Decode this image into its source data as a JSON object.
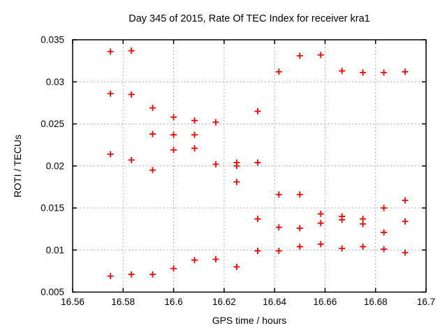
{
  "page": {
    "background": "#ffffff"
  },
  "chart_data": {
    "type": "scatter",
    "title": "Day 345 of 2015, Rate Of TEC Index for receiver kra1",
    "xlabel": "GPS time / hours",
    "ylabel": "ROTI / TECUs",
    "xlim": [
      16.56,
      16.7
    ],
    "ylim": [
      0.005,
      0.035
    ],
    "xticks": [
      {
        "value": 16.56,
        "label": "16.56"
      },
      {
        "value": 16.58,
        "label": "16.58"
      },
      {
        "value": 16.6,
        "label": "16.6"
      },
      {
        "value": 16.62,
        "label": "16.62"
      },
      {
        "value": 16.64,
        "label": "16.64"
      },
      {
        "value": 16.66,
        "label": "16.66"
      },
      {
        "value": 16.68,
        "label": "16.68"
      },
      {
        "value": 16.7,
        "label": "16.7"
      }
    ],
    "yticks": [
      {
        "value": 0.005,
        "label": "0.005"
      },
      {
        "value": 0.01,
        "label": "0.01"
      },
      {
        "value": 0.015,
        "label": "0.015"
      },
      {
        "value": 0.02,
        "label": "0.02"
      },
      {
        "value": 0.025,
        "label": "0.025"
      },
      {
        "value": 0.03,
        "label": "0.03"
      },
      {
        "value": 0.035,
        "label": "0.035"
      }
    ],
    "grid": true,
    "legend": "none",
    "marker": "plus",
    "colors": {
      "marker": "#ff0000",
      "grid": "#b0b0b0",
      "border": "#000000",
      "text": "#000000"
    },
    "series": [
      {
        "name": "ROTI",
        "points": [
          [
            16.575,
            0.0336
          ],
          [
            16.575,
            0.0286
          ],
          [
            16.575,
            0.0214
          ],
          [
            16.575,
            0.0069
          ],
          [
            16.5833,
            0.0337
          ],
          [
            16.5833,
            0.0285
          ],
          [
            16.5833,
            0.0207
          ],
          [
            16.5833,
            0.0071
          ],
          [
            16.5917,
            0.0269
          ],
          [
            16.5917,
            0.0238
          ],
          [
            16.5917,
            0.0195
          ],
          [
            16.5917,
            0.0071
          ],
          [
            16.6,
            0.0258
          ],
          [
            16.6,
            0.0237
          ],
          [
            16.6,
            0.0219
          ],
          [
            16.6,
            0.0078
          ],
          [
            16.6083,
            0.0254
          ],
          [
            16.6083,
            0.0237
          ],
          [
            16.6083,
            0.0221
          ],
          [
            16.6083,
            0.0088
          ],
          [
            16.6167,
            0.0252
          ],
          [
            16.6167,
            0.0202
          ],
          [
            16.6167,
            0.0089
          ],
          [
            16.625,
            0.0204
          ],
          [
            16.625,
            0.02
          ],
          [
            16.625,
            0.0181
          ],
          [
            16.625,
            0.008
          ],
          [
            16.6333,
            0.0265
          ],
          [
            16.6333,
            0.0204
          ],
          [
            16.6333,
            0.0137
          ],
          [
            16.6333,
            0.0099
          ],
          [
            16.6417,
            0.0312
          ],
          [
            16.6417,
            0.0166
          ],
          [
            16.6417,
            0.0127
          ],
          [
            16.6417,
            0.0099
          ],
          [
            16.65,
            0.0331
          ],
          [
            16.65,
            0.0166
          ],
          [
            16.65,
            0.0126
          ],
          [
            16.65,
            0.0104
          ],
          [
            16.6583,
            0.0332
          ],
          [
            16.6583,
            0.0143
          ],
          [
            16.6583,
            0.0132
          ],
          [
            16.6583,
            0.0107
          ],
          [
            16.6667,
            0.0313
          ],
          [
            16.6667,
            0.014
          ],
          [
            16.6667,
            0.0136
          ],
          [
            16.6667,
            0.0102
          ],
          [
            16.675,
            0.0311
          ],
          [
            16.675,
            0.0137
          ],
          [
            16.675,
            0.0131
          ],
          [
            16.675,
            0.0104
          ],
          [
            16.6833,
            0.0311
          ],
          [
            16.6833,
            0.015
          ],
          [
            16.6833,
            0.0121
          ],
          [
            16.6833,
            0.0101
          ],
          [
            16.6917,
            0.0312
          ],
          [
            16.6917,
            0.0159
          ],
          [
            16.6917,
            0.0134
          ],
          [
            16.6917,
            0.0097
          ]
        ]
      }
    ]
  }
}
